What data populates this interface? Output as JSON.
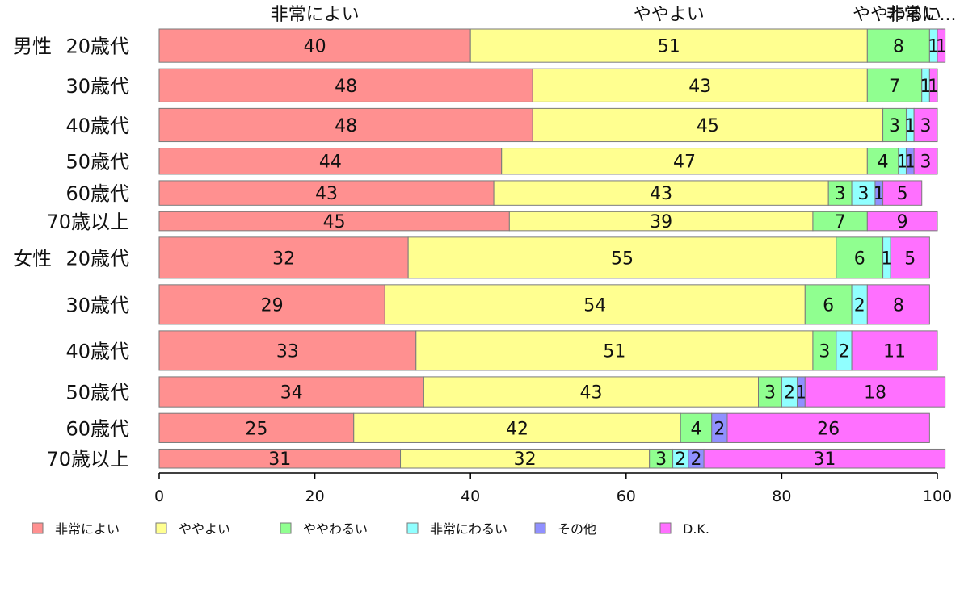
{
  "chart_data": {
    "type": "bar",
    "orientation": "horizontal",
    "stacked": true,
    "title": "",
    "xlabel": "",
    "ylabel": "",
    "xlim": [
      0,
      100
    ],
    "xticks": [
      0,
      20,
      40,
      60,
      80,
      100
    ],
    "grid": false,
    "legend_position": "bottom",
    "top_labels": [
      "非常によい",
      "ややよい",
      "ややわるい",
      "非常に..."
    ],
    "groups": [
      {
        "label": "男性",
        "row_index": 0
      },
      {
        "label": "女性",
        "row_index": 6
      }
    ],
    "categories": [
      "20歳代",
      "30歳代",
      "40歳代",
      "50歳代",
      "60歳代",
      "70歳以上",
      "20歳代",
      "30歳代",
      "40歳代",
      "50歳代",
      "60歳代",
      "70歳以上"
    ],
    "series": [
      {
        "name": "非常によい",
        "color": "#FF9090",
        "values": [
          40,
          48,
          48,
          44,
          43,
          45,
          32,
          29,
          33,
          34,
          25,
          31
        ]
      },
      {
        "name": "ややよい",
        "color": "#FFFF90",
        "values": [
          51,
          43,
          45,
          47,
          43,
          39,
          55,
          54,
          51,
          43,
          42,
          32
        ]
      },
      {
        "name": "ややわるい",
        "color": "#90FF90",
        "values": [
          8,
          7,
          3,
          4,
          3,
          7,
          6,
          6,
          3,
          3,
          4,
          3
        ]
      },
      {
        "name": "非常にわるい",
        "color": "#90FFFF",
        "values": [
          1,
          1,
          1,
          1,
          3,
          0,
          1,
          2,
          2,
          2,
          0,
          2
        ]
      },
      {
        "name": "その他",
        "color": "#9090FF",
        "values": [
          0,
          0,
          0,
          1,
          1,
          0,
          0,
          0,
          0,
          1,
          2,
          2
        ]
      },
      {
        "name": "D.K.",
        "color": "#FF70FF",
        "values": [
          1,
          1,
          3,
          3,
          5,
          9,
          5,
          8,
          11,
          18,
          26,
          31
        ]
      }
    ],
    "row_weights": [
      42,
      42,
      42,
      33,
      31,
      24,
      52,
      50,
      50,
      38,
      37,
      24
    ]
  }
}
